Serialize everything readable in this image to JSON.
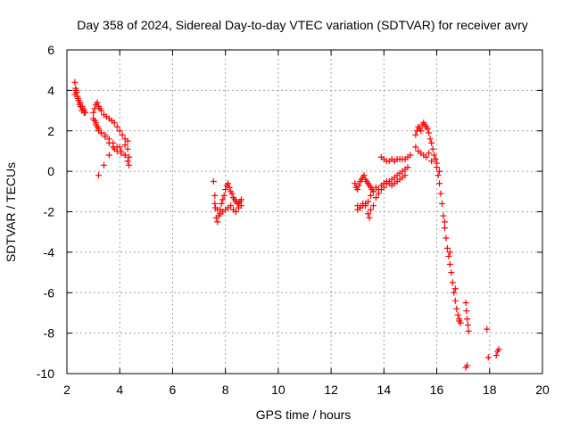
{
  "chart_data": {
    "type": "scatter",
    "title": "Day 358 of 2024, Sidereal Day-to-day VTEC variation (SDTVAR) for receiver avry",
    "xlabel": "GPS time / hours",
    "ylabel": "SDTVAR / TECUs",
    "xlim": [
      2,
      20
    ],
    "ylim": [
      -10,
      6
    ],
    "xticks": [
      2,
      4,
      6,
      8,
      10,
      12,
      14,
      16,
      18,
      20
    ],
    "yticks": [
      -10,
      -8,
      -6,
      -4,
      -2,
      0,
      2,
      4,
      6
    ],
    "grid": true,
    "marker": "+",
    "color": "#ff0000",
    "series": [
      {
        "name": "SDTVAR",
        "x": [
          2.3,
          2.33,
          2.36,
          2.4,
          2.44,
          2.48,
          2.52,
          2.56,
          2.6,
          2.65,
          2.7,
          2.3,
          2.35,
          2.42,
          2.5,
          2.58,
          2.66,
          3.0,
          3.05,
          3.1,
          3.15,
          3.2,
          3.25,
          3.3,
          3.4,
          3.5,
          3.6,
          3.7,
          3.8,
          3.9,
          4.0,
          4.1,
          4.2,
          4.3,
          3.1,
          3.2,
          3.3,
          3.45,
          3.6,
          3.75,
          3.9,
          4.05,
          4.2,
          4.35,
          3.0,
          3.05,
          3.1,
          3.15,
          3.2,
          3.3,
          3.45,
          3.6,
          3.75,
          3.9,
          4.05,
          4.2,
          4.3,
          4.35,
          3.2,
          3.4,
          3.6,
          3.8,
          4.0,
          4.2,
          4.3,
          7.55,
          7.6,
          7.62,
          7.65,
          7.7,
          7.75,
          7.8,
          7.85,
          7.9,
          7.95,
          8.0,
          8.05,
          8.1,
          8.15,
          8.2,
          8.25,
          8.3,
          8.35,
          8.4,
          8.45,
          8.5,
          8.55,
          8.6,
          7.6,
          7.7,
          7.8,
          7.9,
          8.0,
          8.1,
          8.2,
          8.3,
          8.4,
          8.5,
          8.6,
          12.9,
          12.95,
          13.0,
          13.05,
          13.1,
          13.15,
          13.2,
          13.25,
          13.3,
          13.35,
          13.4,
          13.45,
          13.5,
          13.55,
          13.6,
          13.7,
          13.8,
          13.9,
          14.0,
          14.1,
          14.2,
          14.3,
          14.4,
          14.5,
          14.6,
          14.7,
          14.8,
          13.0,
          13.1,
          13.2,
          13.3,
          13.4,
          13.5,
          13.6,
          13.4,
          13.45,
          13.5,
          13.6,
          13.7,
          13.8,
          13.9,
          14.0,
          14.1,
          14.2,
          14.3,
          14.4,
          14.5,
          14.6,
          14.7,
          14.8,
          14.9,
          13.0,
          13.1,
          13.2,
          13.3,
          13.9,
          14.0,
          14.1,
          14.2,
          14.3,
          14.4,
          14.5,
          14.6,
          14.7,
          14.8,
          14.9,
          15.0,
          15.2,
          15.25,
          15.3,
          15.35,
          15.4,
          15.45,
          15.5,
          15.55,
          15.6,
          15.65,
          15.7,
          15.75,
          15.8,
          15.85,
          15.9,
          15.95,
          16.0,
          15.2,
          15.3,
          15.4,
          15.5,
          15.6,
          15.7,
          15.8,
          16.0,
          16.05,
          16.1,
          16.15,
          16.2,
          16.25,
          16.3,
          16.35,
          16.4,
          16.45,
          16.5,
          16.55,
          16.6,
          16.65,
          16.7,
          16.75,
          16.8,
          16.85,
          16.9,
          16.1,
          16.3,
          16.5,
          16.7,
          16.85,
          17.1,
          17.12,
          17.15,
          17.18,
          17.2,
          17.1,
          17.15,
          17.9,
          17.95,
          18.25,
          18.3,
          18.35
        ],
        "y": [
          4.4,
          4.1,
          3.9,
          3.7,
          3.5,
          3.3,
          3.2,
          3.0,
          3.1,
          2.9,
          2.9,
          3.8,
          4.0,
          3.6,
          3.4,
          3.2,
          3.0,
          2.9,
          3.1,
          3.3,
          3.4,
          3.2,
          3.1,
          3.0,
          2.8,
          2.7,
          2.6,
          2.5,
          2.4,
          2.2,
          2.0,
          1.8,
          1.6,
          1.5,
          2.3,
          2.1,
          1.9,
          1.7,
          1.4,
          1.2,
          1.0,
          0.9,
          0.8,
          0.7,
          2.6,
          2.5,
          2.4,
          2.2,
          2.0,
          1.9,
          1.8,
          1.6,
          1.4,
          1.2,
          1.0,
          0.8,
          0.5,
          0.3,
          -0.2,
          0.3,
          0.8,
          1.1,
          1.2,
          1.3,
          1.1,
          -0.5,
          -1.2,
          -1.8,
          -2.3,
          -2.5,
          -2.2,
          -1.9,
          -1.6,
          -1.4,
          -1.2,
          -0.9,
          -0.7,
          -0.6,
          -0.8,
          -1.0,
          -1.1,
          -1.3,
          -1.4,
          -1.5,
          -1.6,
          -1.6,
          -1.5,
          -1.4,
          -1.6,
          -1.9,
          -2.1,
          -2.0,
          -1.9,
          -1.8,
          -1.7,
          -1.9,
          -2.0,
          -1.8,
          -1.7,
          -0.6,
          -0.8,
          -0.9,
          -0.7,
          -0.5,
          -0.4,
          -0.3,
          -0.2,
          -0.4,
          -0.5,
          -0.6,
          -0.7,
          -0.8,
          -0.9,
          -1.0,
          -0.8,
          -0.9,
          -0.7,
          -0.6,
          -0.5,
          -0.6,
          -0.7,
          -0.6,
          -0.5,
          -0.4,
          -0.3,
          -0.2,
          -1.7,
          -1.8,
          -1.7,
          -1.6,
          -1.5,
          -1.2,
          -1.0,
          -2.1,
          -2.3,
          -1.9,
          -1.7,
          -1.3,
          -1.1,
          -0.9,
          -0.8,
          -0.6,
          -0.5,
          -0.4,
          -0.3,
          -0.2,
          -0.1,
          0.0,
          0.1,
          0.2,
          -1.9,
          -1.8,
          -1.6,
          -1.7,
          0.7,
          0.6,
          0.5,
          0.5,
          0.6,
          0.5,
          0.6,
          0.6,
          0.6,
          0.6,
          0.7,
          0.8,
          1.8,
          2.0,
          2.2,
          2.1,
          2.0,
          2.3,
          2.4,
          2.3,
          2.2,
          2.1,
          1.9,
          1.6,
          1.4,
          1.1,
          0.8,
          0.6,
          0.4,
          1.2,
          1.0,
          0.9,
          0.8,
          0.7,
          0.9,
          0.5,
          0.2,
          -0.2,
          -0.6,
          -1.1,
          -1.6,
          -2.2,
          -2.8,
          -3.3,
          -3.8,
          -4.2,
          -4.6,
          -5.0,
          -5.5,
          -6.0,
          -6.4,
          -6.8,
          -7.1,
          -7.3,
          -7.5,
          0.0,
          -2.5,
          -4.0,
          -5.8,
          -7.4,
          -6.5,
          -6.9,
          -7.3,
          -7.6,
          -7.9,
          -9.7,
          -9.6,
          -7.8,
          -9.2,
          -9.1,
          -8.9,
          -8.8
        ]
      }
    ]
  }
}
